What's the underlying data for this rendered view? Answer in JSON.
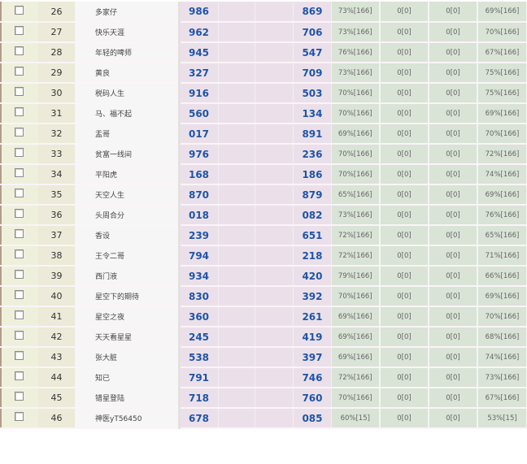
{
  "rows": [
    {
      "n": "26",
      "name": "多家仔",
      "a": "986",
      "b": "869",
      "p1": "73%[166]",
      "p2": "0[0]",
      "p3": "0[0]",
      "p4": "69%[166]"
    },
    {
      "n": "27",
      "name": "快乐天涯",
      "a": "962",
      "b": "706",
      "p1": "73%[166]",
      "p2": "0[0]",
      "p3": "0[0]",
      "p4": "70%[166]"
    },
    {
      "n": "28",
      "name": "年轻的啤师",
      "a": "945",
      "b": "547",
      "p1": "76%[166]",
      "p2": "0[0]",
      "p3": "0[0]",
      "p4": "67%[166]"
    },
    {
      "n": "29",
      "name": "黄良",
      "a": "327",
      "b": "709",
      "p1": "73%[166]",
      "p2": "0[0]",
      "p3": "0[0]",
      "p4": "75%[166]"
    },
    {
      "n": "30",
      "name": "税码人生",
      "a": "916",
      "b": "503",
      "p1": "70%[166]",
      "p2": "0[0]",
      "p3": "0[0]",
      "p4": "75%[166]"
    },
    {
      "n": "31",
      "name": "马、福不起",
      "a": "560",
      "b": "134",
      "p1": "70%[166]",
      "p2": "0[0]",
      "p3": "0[0]",
      "p4": "69%[166]"
    },
    {
      "n": "32",
      "name": "盂哥",
      "a": "017",
      "b": "891",
      "p1": "69%[166]",
      "p2": "0[0]",
      "p3": "0[0]",
      "p4": "70%[166]"
    },
    {
      "n": "33",
      "name": "贫富一线间",
      "a": "976",
      "b": "236",
      "p1": "70%[166]",
      "p2": "0[0]",
      "p3": "0[0]",
      "p4": "72%[166]"
    },
    {
      "n": "34",
      "name": "平阳虎",
      "a": "168",
      "b": "186",
      "p1": "70%[166]",
      "p2": "0[0]",
      "p3": "0[0]",
      "p4": "74%[166]"
    },
    {
      "n": "35",
      "name": "天空人生",
      "a": "870",
      "b": "879",
      "p1": "65%[166]",
      "p2": "0[0]",
      "p3": "0[0]",
      "p4": "69%[166]"
    },
    {
      "n": "36",
      "name": "头周合分",
      "a": "018",
      "b": "082",
      "p1": "73%[166]",
      "p2": "0[0]",
      "p3": "0[0]",
      "p4": "76%[166]"
    },
    {
      "n": "37",
      "name": "香设",
      "a": "239",
      "b": "651",
      "p1": "72%[166]",
      "p2": "0[0]",
      "p3": "0[0]",
      "p4": "65%[166]"
    },
    {
      "n": "38",
      "name": "王令二哥",
      "a": "794",
      "b": "218",
      "p1": "72%[166]",
      "p2": "0[0]",
      "p3": "0[0]",
      "p4": "71%[166]"
    },
    {
      "n": "39",
      "name": "西门液",
      "a": "934",
      "b": "420",
      "p1": "79%[166]",
      "p2": "0[0]",
      "p3": "0[0]",
      "p4": "66%[166]"
    },
    {
      "n": "40",
      "name": "星空下的期待",
      "a": "830",
      "b": "392",
      "p1": "70%[166]",
      "p2": "0[0]",
      "p3": "0[0]",
      "p4": "69%[166]"
    },
    {
      "n": "41",
      "name": "星空之夜",
      "a": "360",
      "b": "261",
      "p1": "69%[166]",
      "p2": "0[0]",
      "p3": "0[0]",
      "p4": "70%[166]"
    },
    {
      "n": "42",
      "name": "天天看星星",
      "a": "245",
      "b": "419",
      "p1": "69%[166]",
      "p2": "0[0]",
      "p3": "0[0]",
      "p4": "68%[166]"
    },
    {
      "n": "43",
      "name": "张大脏",
      "a": "538",
      "b": "397",
      "p1": "69%[166]",
      "p2": "0[0]",
      "p3": "0[0]",
      "p4": "74%[166]"
    },
    {
      "n": "44",
      "name": "知已",
      "a": "791",
      "b": "746",
      "p1": "72%[166]",
      "p2": "0[0]",
      "p3": "0[0]",
      "p4": "73%[166]"
    },
    {
      "n": "45",
      "name": "错星登陆",
      "a": "718",
      "b": "760",
      "p1": "70%[166]",
      "p2": "0[0]",
      "p3": "0[0]",
      "p4": "67%[166]"
    },
    {
      "n": "46",
      "name": "神医yT56450",
      "a": "678",
      "b": "085",
      "p1": "60%[15]",
      "p2": "0[0]",
      "p3": "0[0]",
      "p4": "53%[15]"
    }
  ]
}
